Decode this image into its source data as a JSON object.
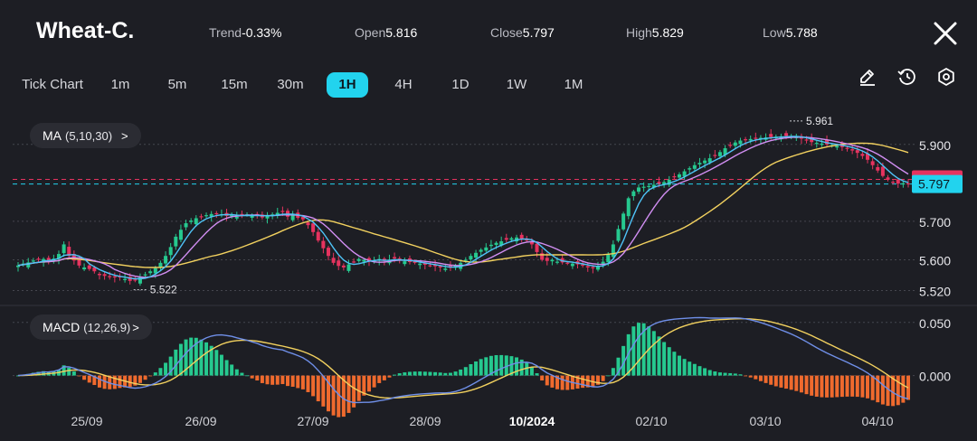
{
  "header": {
    "symbol": "Wheat-C.",
    "trend_label": "Trend",
    "trend_value": "-0.33%",
    "open_label": "Open",
    "open_value": "5.816",
    "close_label": "Close",
    "close_value": "5.797",
    "high_label": "High",
    "high_value": "5.829",
    "low_label": "Low",
    "low_value": "5.788"
  },
  "timeframes": [
    "Tick Chart",
    "1m",
    "5m",
    "15m",
    "30m",
    "1H",
    "4H",
    "1D",
    "1W",
    "1M"
  ],
  "active_timeframe": "1H",
  "toolbar_icons": [
    "draw-icon",
    "history-icon",
    "settings-icon",
    "close-icon"
  ],
  "indicators": {
    "ma": {
      "label": "MA",
      "params": "(5,10,30)",
      "chevron": ">"
    },
    "macd": {
      "label": "MACD",
      "params": "(12,26,9)",
      "chevron": ">"
    }
  },
  "colors": {
    "bull": "#26c98f",
    "bear": "#e6335f",
    "ma5": "#4fc3f7",
    "ma10": "#d18ef2",
    "ma30": "#f2d15f",
    "macd_line": "#6f8fe8",
    "signal_line": "#f2d15f",
    "hist_pos": "#26c98f",
    "hist_neg": "#ef6a2e",
    "accent": "#22d3ee"
  },
  "chart_data": {
    "type": "candlestick",
    "price_axis": {
      "ticks": [
        "5.900",
        "5.700",
        "5.600",
        "5.520"
      ],
      "range": [
        5.5,
        5.97
      ]
    },
    "current_price_tags": [
      {
        "value": "5.809",
        "color": "#e6335f"
      },
      {
        "value": "5.797",
        "color": "#22d3ee"
      }
    ],
    "annotations": [
      {
        "label": "5.961",
        "value": 5.961
      },
      {
        "label": "5.522",
        "value": 5.522
      }
    ],
    "x_labels": [
      {
        "label": "25/09",
        "bold": false
      },
      {
        "label": "26/09",
        "bold": false
      },
      {
        "label": "27/09",
        "bold": false
      },
      {
        "label": "28/09",
        "bold": false
      },
      {
        "label": "10/2024",
        "bold": true
      },
      {
        "label": "02/10",
        "bold": false
      },
      {
        "label": "03/10",
        "bold": false
      },
      {
        "label": "04/10",
        "bold": false
      }
    ],
    "close_series": [
      5.585,
      5.59,
      5.593,
      5.598,
      5.6,
      5.602,
      5.597,
      5.603,
      5.615,
      5.64,
      5.61,
      5.598,
      5.585,
      5.58,
      5.576,
      5.57,
      5.56,
      5.558,
      5.556,
      5.555,
      5.555,
      5.55,
      5.545,
      5.548,
      5.555,
      5.562,
      5.57,
      5.578,
      5.592,
      5.61,
      5.633,
      5.66,
      5.678,
      5.695,
      5.702,
      5.708,
      5.712,
      5.716,
      5.719,
      5.72,
      5.718,
      5.714,
      5.716,
      5.712,
      5.715,
      5.718,
      5.714,
      5.716,
      5.71,
      5.715,
      5.718,
      5.722,
      5.726,
      5.712,
      5.715,
      5.709,
      5.705,
      5.69,
      5.672,
      5.65,
      5.63,
      5.61,
      5.592,
      5.584,
      5.58,
      5.588,
      5.595,
      5.602,
      5.6,
      5.595,
      5.598,
      5.602,
      5.597,
      5.6,
      5.603,
      5.598,
      5.596,
      5.594,
      5.592,
      5.59,
      5.587,
      5.585,
      5.583,
      5.58,
      5.577,
      5.579,
      5.585,
      5.592,
      5.6,
      5.61,
      5.618,
      5.626,
      5.632,
      5.639,
      5.644,
      5.648,
      5.652,
      5.656,
      5.658,
      5.655,
      5.65,
      5.64,
      5.62,
      5.6,
      5.597,
      5.6,
      5.595,
      5.593,
      5.591,
      5.59,
      5.588,
      5.585,
      5.58,
      5.578,
      5.583,
      5.595,
      5.615,
      5.64,
      5.68,
      5.72,
      5.76,
      5.778,
      5.788,
      5.79,
      5.792,
      5.795,
      5.798,
      5.802,
      5.808,
      5.815,
      5.822,
      5.83,
      5.838,
      5.846,
      5.852,
      5.858,
      5.864,
      5.872,
      5.88,
      5.89,
      5.898,
      5.905,
      5.91,
      5.912,
      5.914,
      5.916,
      5.917,
      5.918,
      5.919,
      5.92,
      5.921,
      5.922,
      5.921,
      5.919,
      5.915,
      5.91,
      5.906,
      5.904,
      5.902,
      5.9,
      5.898,
      5.896,
      5.893,
      5.889,
      5.884,
      5.878,
      5.87,
      5.86,
      5.846,
      5.832,
      5.818,
      5.808,
      5.802,
      5.798,
      5.799,
      5.797
    ],
    "macd": {
      "ticks": [
        "0.050",
        "0.000"
      ],
      "range": [
        -0.025,
        0.06
      ]
    }
  }
}
